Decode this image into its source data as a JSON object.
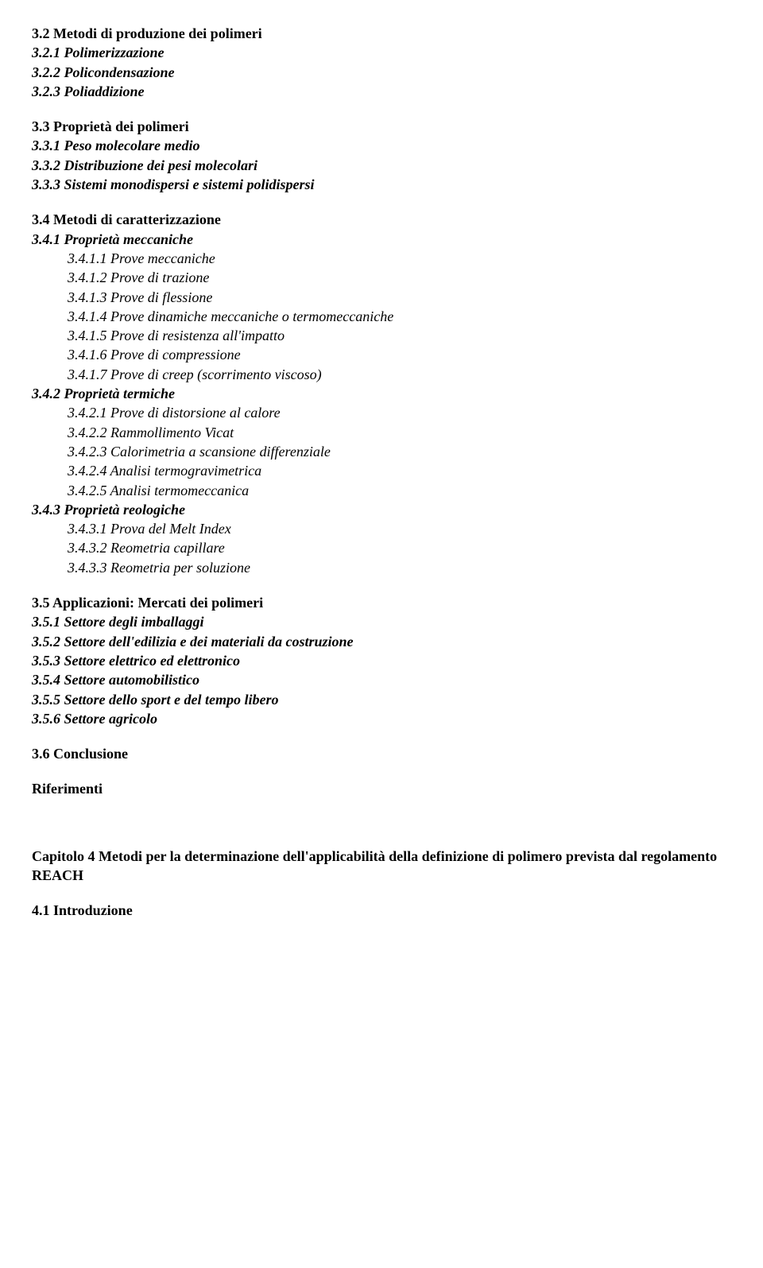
{
  "sec32": {
    "title": "3.2 Metodi di produzione dei polimeri",
    "i1": "3.2.1 Polimerizzazione",
    "i2": "3.2.2 Policondensazione",
    "i3": "3.2.3 Poliaddizione"
  },
  "sec33": {
    "title": "3.3 Proprietà dei polimeri",
    "i1": "3.3.1 Peso molecolare medio",
    "i2": "3.3.2 Distribuzione dei pesi molecolari",
    "i3": "3.3.3 Sistemi monodispersi e sistemi polidispersi"
  },
  "sec34": {
    "title": "3.4 Metodi di caratterizzazione",
    "s341": "3.4.1 Proprietà meccaniche",
    "s3411": "3.4.1.1 Prove meccaniche",
    "s3412": "3.4.1.2 Prove di trazione",
    "s3413": "3.4.1.3 Prove di flessione",
    "s3414": "3.4.1.4 Prove dinamiche meccaniche o termomeccaniche",
    "s3415": "3.4.1.5 Prove di resistenza all'impatto",
    "s3416": "3.4.1.6 Prove di compressione",
    "s3417": "3.4.1.7 Prove di creep (scorrimento viscoso)",
    "s342": "3.4.2 Proprietà termiche",
    "s3421": "3.4.2.1 Prove di distorsione al calore",
    "s3422": "3.4.2.2 Rammollimento Vicat",
    "s3423": "3.4.2.3 Calorimetria a scansione differenziale",
    "s3424": "3.4.2.4 Analisi termogravimetrica",
    "s3425": "3.4.2.5 Analisi termomeccanica",
    "s343": "3.4.3 Proprietà reologiche",
    "s3431": "3.4.3.1 Prova del Melt Index",
    "s3432": "3.4.3.2 Reometria capillare",
    "s3433": "3.4.3.3 Reometria per soluzione"
  },
  "sec35": {
    "title": "3.5 Applicazioni: Mercati dei polimeri",
    "i1": "3.5.1 Settore degli imballaggi",
    "i2": "3.5.2 Settore dell'edilizia e dei materiali da costruzione",
    "i3": "3.5.3 Settore elettrico ed elettronico",
    "i4": "3.5.4 Settore automobilistico",
    "i5": "3.5.5 Settore dello sport e del tempo libero",
    "i6": "3.5.6 Settore agricolo"
  },
  "sec36": "3.6 Conclusione",
  "references": "Riferimenti",
  "chapter4": {
    "title": "Capitolo 4 Metodi per la determinazione dell'applicabilità della definizione di polimero prevista dal regolamento REACH",
    "s41": "4.1 Introduzione"
  }
}
